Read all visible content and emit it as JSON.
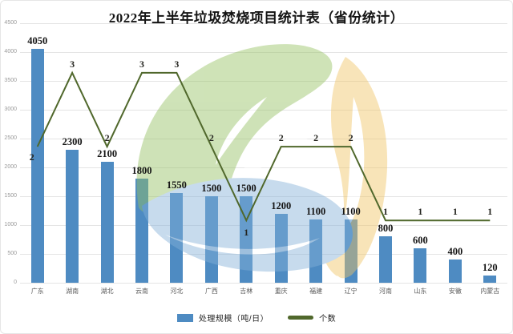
{
  "title": "2022年上半年垃圾焚烧项目统计表（省份统计）",
  "colors": {
    "bar": "#4e8bc2",
    "line": "#50682c",
    "grid": "#e4e4e4",
    "ytick_text": "#9a9a9a",
    "xtick_text": "#5a5a5a",
    "watermark_green": "#95c161",
    "watermark_orange": "#f0c464",
    "watermark_blue": "#85b1d9"
  },
  "chart_data": {
    "type": "bar",
    "title": "2022年上半年垃圾焚烧项目统计表（省份统计）",
    "categories": [
      "广东",
      "湖南",
      "湖北",
      "云南",
      "河北",
      "广西",
      "吉林",
      "重庆",
      "福建",
      "辽宁",
      "河南",
      "山东",
      "安徽",
      "内蒙古"
    ],
    "series": [
      {
        "name": "处理规模（吨/日）",
        "type": "bar",
        "axis": "primary",
        "values": [
          4050,
          2300,
          2100,
          1800,
          1550,
          1500,
          1500,
          1200,
          1100,
          1100,
          800,
          600,
          400,
          120
        ]
      },
      {
        "name": "个数",
        "type": "line",
        "axis": "secondary",
        "values": [
          2,
          3,
          2,
          3,
          3,
          2,
          1,
          2,
          2,
          2,
          1,
          1,
          1,
          1
        ]
      }
    ],
    "xlabel": "",
    "ylabel": "",
    "ylim": [
      0,
      4500
    ],
    "ytick_step": 500,
    "grid": true,
    "legend_position": "bottom",
    "data_labels": true
  }
}
